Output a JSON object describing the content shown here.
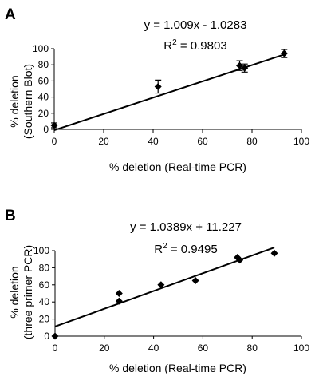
{
  "chart_data": [
    {
      "type": "scatter",
      "panel_label": "A",
      "equation": "y = 1.009x - 1.0283",
      "r2_prefix": "R",
      "r2_sup": "2",
      "r2_value": " = 0.9803",
      "xlabel": "% deletion (Real-time PCR)",
      "ylabel_lines": [
        "% deletion",
        "(Southern Blot)"
      ],
      "xlim": [
        0,
        100
      ],
      "ylim": [
        0,
        100
      ],
      "xticks": [
        0,
        20,
        40,
        60,
        80,
        100
      ],
      "yticks": [
        0,
        20,
        40,
        60,
        80,
        100
      ],
      "points": [
        {
          "x": 0,
          "y": 5,
          "err": 3
        },
        {
          "x": 42,
          "y": 53,
          "err": 8
        },
        {
          "x": 75,
          "y": 79,
          "err": 6
        },
        {
          "x": 77,
          "y": 76,
          "err": 5
        },
        {
          "x": 93,
          "y": 94,
          "err": 5
        }
      ],
      "fit": {
        "slope": 1.009,
        "intercept": -1.0283,
        "x_range": [
          0,
          93
        ]
      }
    },
    {
      "type": "scatter",
      "panel_label": "B",
      "equation": "y = 1.0389x + 11.227",
      "r2_prefix": "R",
      "r2_sup": "2",
      "r2_value": " = 0.9495",
      "xlabel": "% deletion (Real-time PCR)",
      "ylabel_lines": [
        "% deletion",
        "(three primer PCR)"
      ],
      "xlim": [
        0,
        100
      ],
      "ylim": [
        0,
        100
      ],
      "xticks": [
        0,
        20,
        40,
        60,
        80,
        100
      ],
      "yticks": [
        0,
        20,
        40,
        60,
        80,
        100
      ],
      "points": [
        {
          "x": 0,
          "y": 0
        },
        {
          "x": 26,
          "y": 50
        },
        {
          "x": 26,
          "y": 41
        },
        {
          "x": 43,
          "y": 60
        },
        {
          "x": 57,
          "y": 65
        },
        {
          "x": 74,
          "y": 92
        },
        {
          "x": 75,
          "y": 89
        },
        {
          "x": 89,
          "y": 97
        }
      ],
      "fit": {
        "slope": 1.0389,
        "intercept": 11.227,
        "x_range": [
          0,
          89
        ]
      }
    }
  ]
}
